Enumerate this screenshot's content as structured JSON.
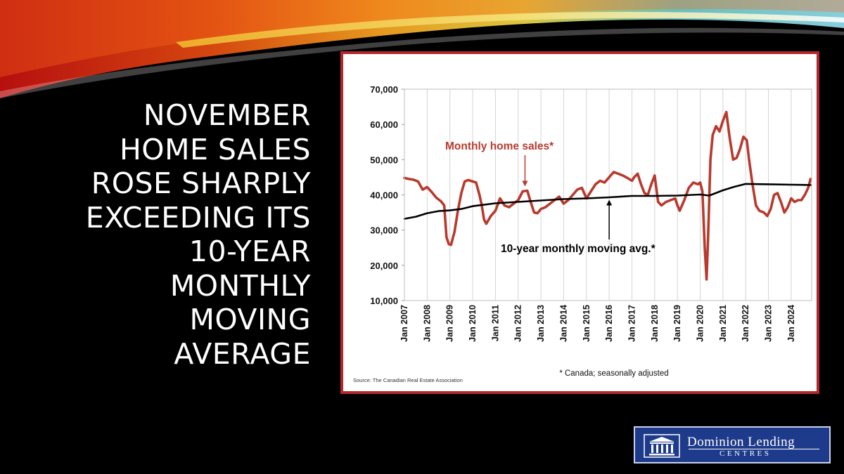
{
  "slide": {
    "title_lines": [
      "NOVEMBER",
      "HOME SALES",
      "ROSE SHARPLY",
      "EXCEEDING ITS",
      "10-YEAR",
      "MONTHLY",
      "MOVING",
      "AVERAGE"
    ]
  },
  "logo": {
    "line1": "Dominion Lending",
    "line2": "CENTRES",
    "icon": "building-columns-icon"
  },
  "chart_data": {
    "type": "line",
    "xlabel": "",
    "ylabel": "",
    "ylim": [
      10000,
      70000
    ],
    "yticks": [
      10000,
      20000,
      30000,
      40000,
      50000,
      60000,
      70000
    ],
    "ytick_labels": [
      "10,000",
      "20,000",
      "30,000",
      "40,000",
      "50,000",
      "60,000",
      "70,000"
    ],
    "xlim": [
      2007.0,
      2024.9
    ],
    "xticks": [
      2007,
      2008,
      2009,
      2010,
      2011,
      2012,
      2013,
      2014,
      2015,
      2016,
      2017,
      2018,
      2019,
      2020,
      2021,
      2022,
      2023,
      2024
    ],
    "xtick_labels": [
      "Jan 2007",
      "Jan 2008",
      "Jan 2009",
      "Jan 2010",
      "Jan 2011",
      "Jan 2012",
      "Jan 2013",
      "Jan 2014",
      "Jan 2015",
      "Jan 2016",
      "Jan 2017",
      "Jan 2018",
      "Jan 2019",
      "Jan 2020",
      "Jan 2021",
      "Jan 2022",
      "Jan 2023",
      "Jan 2024"
    ],
    "grid": "vertical",
    "series": [
      {
        "name": "Monthly home sales*",
        "color": "#b83a2e",
        "points": [
          [
            2007.0,
            44800
          ],
          [
            2007.2,
            44500
          ],
          [
            2007.4,
            44300
          ],
          [
            2007.6,
            43800
          ],
          [
            2007.8,
            41500
          ],
          [
            2008.0,
            42200
          ],
          [
            2008.2,
            40800
          ],
          [
            2008.4,
            39200
          ],
          [
            2008.6,
            38200
          ],
          [
            2008.75,
            37000
          ],
          [
            2008.85,
            28000
          ],
          [
            2008.95,
            26000
          ],
          [
            2009.05,
            25800
          ],
          [
            2009.2,
            29500
          ],
          [
            2009.35,
            35500
          ],
          [
            2009.5,
            40500
          ],
          [
            2009.65,
            43800
          ],
          [
            2009.8,
            44200
          ],
          [
            2010.0,
            43800
          ],
          [
            2010.15,
            43500
          ],
          [
            2010.3,
            40000
          ],
          [
            2010.4,
            37000
          ],
          [
            2010.5,
            33000
          ],
          [
            2010.6,
            31800
          ],
          [
            2010.8,
            34000
          ],
          [
            2011.0,
            35500
          ],
          [
            2011.2,
            39000
          ],
          [
            2011.4,
            37000
          ],
          [
            2011.6,
            36500
          ],
          [
            2011.8,
            37500
          ],
          [
            2012.0,
            38500
          ],
          [
            2012.2,
            41000
          ],
          [
            2012.4,
            41200
          ],
          [
            2012.55,
            38000
          ],
          [
            2012.7,
            35000
          ],
          [
            2012.85,
            34800
          ],
          [
            2013.0,
            36000
          ],
          [
            2013.2,
            36500
          ],
          [
            2013.4,
            37500
          ],
          [
            2013.6,
            38500
          ],
          [
            2013.8,
            39500
          ],
          [
            2014.0,
            37500
          ],
          [
            2014.2,
            38500
          ],
          [
            2014.4,
            40000
          ],
          [
            2014.6,
            41500
          ],
          [
            2014.8,
            42000
          ],
          [
            2015.0,
            39000
          ],
          [
            2015.2,
            41000
          ],
          [
            2015.4,
            43000
          ],
          [
            2015.6,
            44000
          ],
          [
            2015.8,
            43500
          ],
          [
            2016.0,
            45000
          ],
          [
            2016.2,
            46500
          ],
          [
            2016.4,
            46000
          ],
          [
            2016.6,
            45500
          ],
          [
            2016.8,
            44800
          ],
          [
            2017.0,
            44000
          ],
          [
            2017.1,
            45000
          ],
          [
            2017.25,
            46000
          ],
          [
            2017.4,
            43000
          ],
          [
            2017.55,
            40500
          ],
          [
            2017.7,
            40000
          ],
          [
            2017.85,
            43000
          ],
          [
            2018.0,
            45500
          ],
          [
            2018.15,
            38000
          ],
          [
            2018.3,
            37000
          ],
          [
            2018.5,
            38000
          ],
          [
            2018.7,
            38500
          ],
          [
            2018.9,
            39000
          ],
          [
            2019.0,
            37000
          ],
          [
            2019.1,
            35500
          ],
          [
            2019.3,
            38500
          ],
          [
            2019.5,
            42000
          ],
          [
            2019.7,
            43500
          ],
          [
            2019.9,
            43000
          ],
          [
            2020.0,
            43500
          ],
          [
            2020.1,
            41000
          ],
          [
            2020.2,
            25000
          ],
          [
            2020.28,
            16000
          ],
          [
            2020.35,
            28000
          ],
          [
            2020.45,
            50000
          ],
          [
            2020.55,
            57000
          ],
          [
            2020.7,
            59500
          ],
          [
            2020.85,
            58000
          ],
          [
            2021.0,
            61000
          ],
          [
            2021.15,
            63500
          ],
          [
            2021.3,
            56000
          ],
          [
            2021.45,
            50000
          ],
          [
            2021.6,
            50500
          ],
          [
            2021.75,
            53000
          ],
          [
            2021.9,
            56500
          ],
          [
            2022.05,
            55500
          ],
          [
            2022.15,
            50000
          ],
          [
            2022.3,
            43000
          ],
          [
            2022.45,
            37000
          ],
          [
            2022.6,
            35500
          ],
          [
            2022.8,
            35000
          ],
          [
            2022.95,
            34000
          ],
          [
            2023.1,
            36000
          ],
          [
            2023.25,
            40000
          ],
          [
            2023.4,
            40500
          ],
          [
            2023.55,
            38000
          ],
          [
            2023.7,
            35000
          ],
          [
            2023.85,
            36500
          ],
          [
            2024.0,
            39000
          ],
          [
            2024.15,
            38000
          ],
          [
            2024.3,
            38500
          ],
          [
            2024.45,
            38500
          ],
          [
            2024.6,
            40000
          ],
          [
            2024.75,
            42000
          ],
          [
            2024.85,
            44500
          ]
        ]
      },
      {
        "name": "10-year monthly moving avg.*",
        "color": "#000000",
        "points": [
          [
            2007.0,
            33200
          ],
          [
            2007.5,
            33800
          ],
          [
            2008.0,
            34800
          ],
          [
            2008.5,
            35400
          ],
          [
            2009.0,
            35600
          ],
          [
            2009.5,
            36000
          ],
          [
            2010.0,
            36800
          ],
          [
            2011.0,
            37600
          ],
          [
            2012.0,
            38000
          ],
          [
            2013.0,
            38400
          ],
          [
            2014.0,
            38800
          ],
          [
            2015.0,
            39000
          ],
          [
            2016.0,
            39300
          ],
          [
            2017.0,
            39700
          ],
          [
            2018.0,
            39700
          ],
          [
            2019.0,
            39800
          ],
          [
            2020.0,
            40100
          ],
          [
            2020.4,
            39800
          ],
          [
            2021.0,
            41300
          ],
          [
            2021.5,
            42300
          ],
          [
            2022.0,
            43100
          ],
          [
            2023.0,
            43000
          ],
          [
            2024.0,
            42900
          ],
          [
            2024.85,
            42800
          ]
        ]
      }
    ],
    "annotations": [
      {
        "text": "Monthly home sales*",
        "color": "#b83a2e",
        "arrow_to": [
          2012.3,
          41200
        ]
      },
      {
        "text": "10-year monthly moving avg.*",
        "color": "#000000",
        "arrow_to": [
          2016.0,
          39400
        ]
      }
    ],
    "footnote": "* Canada; seasonally adjusted",
    "source": "Source: The Canadian Real Estate Association"
  }
}
